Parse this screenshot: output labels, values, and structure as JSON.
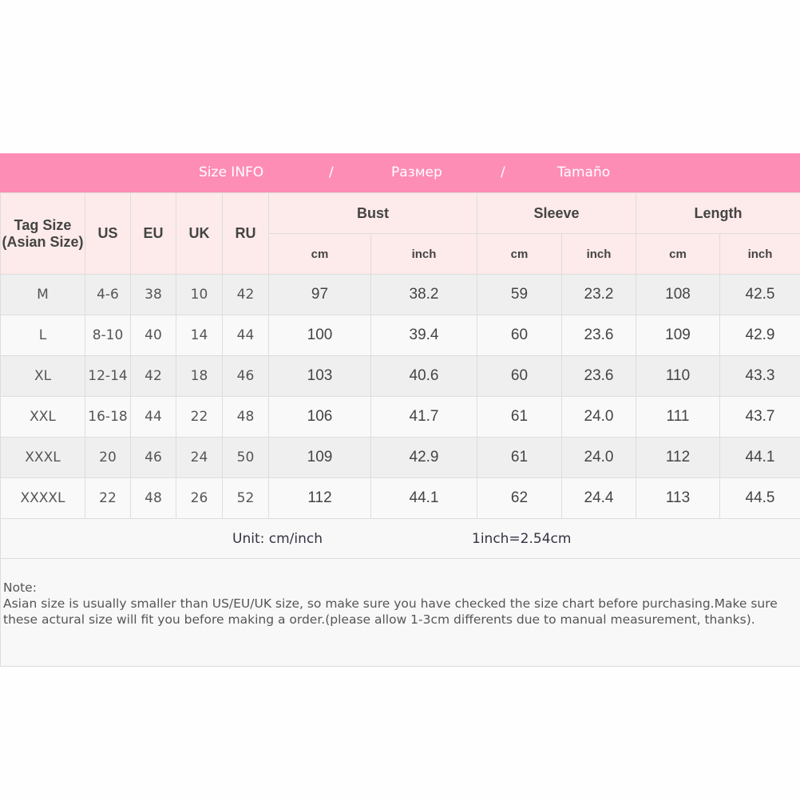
{
  "title": {
    "parts": [
      "Size INFO",
      "/",
      "Размер",
      "/",
      "Tamaño"
    ]
  },
  "headers": {
    "tag_size": "Tag Size",
    "tag_size_sub": "(Asian Size)",
    "us": "US",
    "eu": "EU",
    "uk": "UK",
    "ru": "RU",
    "bust": "Bust",
    "sleeve": "Sleeve",
    "length": "Length",
    "cm": "cm",
    "inch": "inch"
  },
  "rows": [
    [
      "M",
      "4-6",
      "38",
      "10",
      "42",
      "97",
      "38.2",
      "59",
      "23.2",
      "108",
      "42.5"
    ],
    [
      "L",
      "8-10",
      "40",
      "14",
      "44",
      "100",
      "39.4",
      "60",
      "23.6",
      "109",
      "42.9"
    ],
    [
      "XL",
      "12-14",
      "42",
      "18",
      "46",
      "103",
      "40.6",
      "60",
      "23.6",
      "110",
      "43.3"
    ],
    [
      "XXL",
      "16-18",
      "44",
      "22",
      "48",
      "106",
      "41.7",
      "61",
      "24.0",
      "111",
      "43.7"
    ],
    [
      "XXXL",
      "20",
      "46",
      "24",
      "50",
      "109",
      "42.9",
      "61",
      "24.0",
      "112",
      "44.1"
    ],
    [
      "XXXXL",
      "22",
      "48",
      "26",
      "52",
      "112",
      "44.1",
      "62",
      "24.4",
      "113",
      "44.5"
    ]
  ],
  "unit": {
    "label": "Unit: cm/inch",
    "conversion": "1inch=2.54cm"
  },
  "note": {
    "label": "Note:",
    "line1": "Asian size is usually smaller than US/EU/UK size, so make sure you have checked the size chart before purchasing.Make sure",
    "line2": "these actural size will fit you before making a order.(please allow 1-3cm differents due to manual measurement, thanks)."
  },
  "colors": {
    "header_pink": "#fe8db5",
    "subheader_bg": "#fdeaea",
    "row_gray": "#efefef",
    "row_light": "#f9f9f9"
  }
}
